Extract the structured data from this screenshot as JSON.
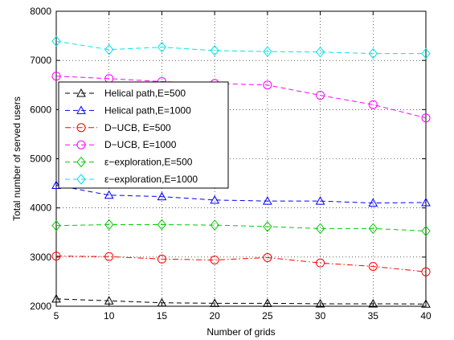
{
  "chart_data": {
    "type": "line",
    "xlabel": "Number of grids",
    "ylabel": "Total number of served users",
    "xlim": [
      5,
      40
    ],
    "ylim": [
      2000,
      8000
    ],
    "xticks": [
      5,
      10,
      15,
      20,
      25,
      30,
      35,
      40
    ],
    "yticks": [
      2000,
      3000,
      4000,
      5000,
      6000,
      7000,
      8000
    ],
    "grid": true,
    "legend_position": "upper-left",
    "x": [
      5,
      10,
      15,
      20,
      25,
      30,
      35,
      40
    ],
    "series": [
      {
        "name": "Helical path,E=500",
        "color": "#000000",
        "marker": "triangle",
        "dash": "dashed",
        "values": [
          2150,
          2110,
          2070,
          2060,
          2060,
          2050,
          2050,
          2045
        ]
      },
      {
        "name": "Helical path,E=1000",
        "color": "#0000ff",
        "marker": "triangle",
        "dash": "dashed",
        "values": [
          4460,
          4260,
          4230,
          4160,
          4140,
          4140,
          4100,
          4110
        ]
      },
      {
        "name": "D−UCB, E=500",
        "color": "#ff0000",
        "marker": "circle",
        "dash": "dashdot",
        "values": [
          3020,
          3010,
          2960,
          2940,
          2990,
          2880,
          2810,
          2700
        ]
      },
      {
        "name": "D−UCB, E=1000",
        "color": "#ff00ff",
        "marker": "circle",
        "dash": "dashed",
        "values": [
          6680,
          6630,
          6570,
          6530,
          6500,
          6290,
          6100,
          5830
        ]
      },
      {
        "name": "ε−exploration,E=500",
        "color": "#00cc00",
        "marker": "diamond",
        "dash": "dashed",
        "values": [
          3640,
          3660,
          3660,
          3650,
          3620,
          3580,
          3580,
          3530
        ]
      },
      {
        "name": "ε−exploration,E=1000",
        "color": "#00e5e5",
        "marker": "diamond",
        "dash": "dashed",
        "values": [
          7390,
          7220,
          7270,
          7200,
          7180,
          7170,
          7140,
          7140
        ]
      }
    ]
  }
}
